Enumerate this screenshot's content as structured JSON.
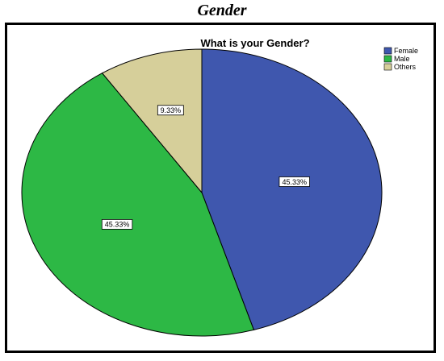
{
  "caption": "Gender",
  "chart_data": {
    "type": "pie",
    "title": "What is your Gender?",
    "categories": [
      "Female",
      "Male",
      "Others"
    ],
    "values": [
      45.33,
      45.33,
      9.33
    ],
    "labels": [
      "45.33%",
      "45.33%",
      "9.33%"
    ],
    "colors": [
      "#3F57AE",
      "#2DB845",
      "#D6CF9A"
    ],
    "legend_position": "top-right"
  }
}
